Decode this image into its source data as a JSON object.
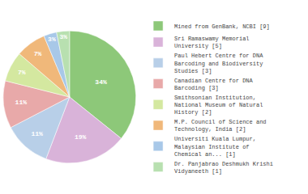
{
  "chart_data": {
    "type": "pie",
    "categories": [
      "Mined from GenBank, NCBI [9]",
      "Sri Ramaswamy Memorial\nUniversity [5]",
      "Paul Hebert Centre for DNA\nBarcoding and Biodiversity\nStudies [3]",
      "Canadian Centre for DNA\nBarcoding [3]",
      "Smithsonian Institution,\nNational Museum of Natural\nHistory [2]",
      "M.P. Council of Science and\nTechnology, India [2]",
      "Universiti Kuala Lumpur,\nMalaysian Institute of\nChemical an... [1]",
      "Dr. Panjabrao Deshmukh Krishi\nVidyaneeth [1]"
    ],
    "values": [
      34,
      19,
      11,
      11,
      7,
      7,
      3,
      3
    ],
    "value_labels": [
      "34%",
      "19%",
      "11%",
      "11%",
      "7%",
      "7%",
      "3%",
      "3%"
    ],
    "colors": [
      "#8dc879",
      "#d9b3d9",
      "#b8cfe8",
      "#e8a9a9",
      "#d4e8a0",
      "#f0b87a",
      "#a8c8e8",
      "#b8e0b0"
    ],
    "data_labels": true,
    "legend": "right"
  }
}
